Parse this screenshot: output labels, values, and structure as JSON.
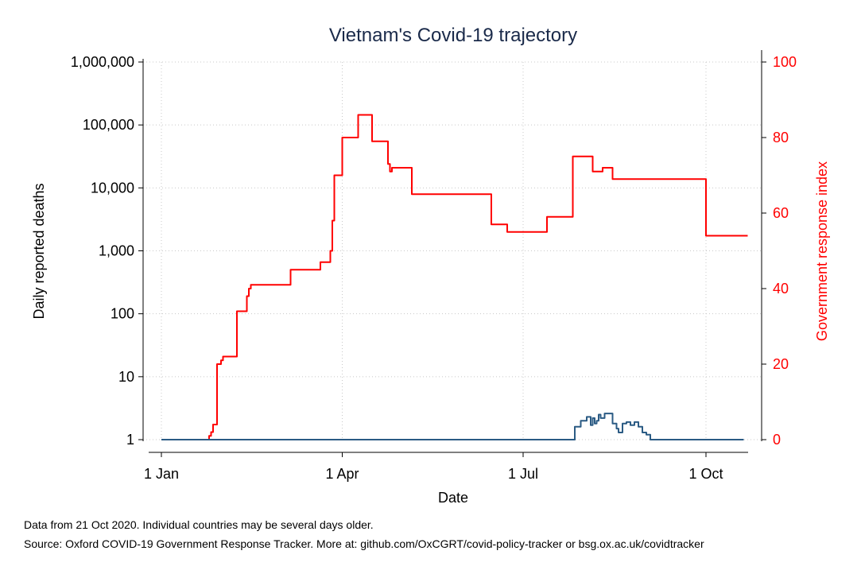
{
  "chart_data": {
    "type": "line",
    "title": "Vietnam's Covid-19 trajectory",
    "xlabel": "Date",
    "ylabel_left": "Daily reported deaths",
    "ylabel_right": "Government response index",
    "y_left_scale": "log",
    "y_left_ticks": [
      "1",
      "10",
      "100",
      "1,000",
      "10,000",
      "100,000",
      "1,000,000"
    ],
    "y_left_range": [
      1,
      1000000
    ],
    "y_right_ticks": [
      "0",
      "20",
      "40",
      "60",
      "80",
      "100"
    ],
    "y_right_range": [
      0,
      100
    ],
    "x_ticks": [
      "1 Jan",
      "1 Apr",
      "1 Jul",
      "1 Oct"
    ],
    "x_range": [
      "2020-01-01",
      "2020-10-21"
    ],
    "grid": true,
    "colors": {
      "deaths": "#2b5b84",
      "response_index": "#ff0000",
      "right_axis": "#ff0000"
    },
    "series": [
      {
        "axis": "right",
        "color": "#ff0000",
        "x": [
          "2020-01-01",
          "2020-01-24",
          "2020-01-25",
          "2020-01-26",
          "2020-01-27",
          "2020-01-28",
          "2020-01-29",
          "2020-01-30",
          "2020-01-31",
          "2020-02-01",
          "2020-02-03",
          "2020-02-04",
          "2020-02-07",
          "2020-02-08",
          "2020-02-12",
          "2020-02-13",
          "2020-02-14",
          "2020-02-15",
          "2020-02-17",
          "2020-03-05",
          "2020-03-06",
          "2020-03-20",
          "2020-03-21",
          "2020-03-23",
          "2020-03-26",
          "2020-03-27",
          "2020-03-28",
          "2020-03-31",
          "2020-04-01",
          "2020-04-08",
          "2020-04-09",
          "2020-04-15",
          "2020-04-16",
          "2020-04-23",
          "2020-04-24",
          "2020-04-25",
          "2020-04-26",
          "2020-05-05",
          "2020-05-06",
          "2020-06-14",
          "2020-06-15",
          "2020-06-22",
          "2020-06-23",
          "2020-07-12",
          "2020-07-13",
          "2020-07-25",
          "2020-07-26",
          "2020-07-28",
          "2020-07-29",
          "2020-08-04",
          "2020-08-05",
          "2020-08-09",
          "2020-08-10",
          "2020-08-14",
          "2020-08-15",
          "2020-09-30",
          "2020-10-01",
          "2020-10-22"
        ],
        "values": [
          0,
          0,
          1,
          2,
          4,
          4,
          20,
          20,
          21,
          22,
          22,
          22,
          22,
          34,
          34,
          38,
          40,
          41,
          41,
          41,
          45,
          45,
          47,
          47,
          50,
          58,
          70,
          70,
          80,
          80,
          86,
          86,
          79,
          79,
          73,
          71,
          72,
          72,
          65,
          65,
          57,
          57,
          55,
          55,
          59,
          59,
          75,
          75,
          75,
          75,
          71,
          71,
          72,
          72,
          69,
          69,
          54,
          54
        ]
      },
      {
        "axis": "left",
        "color": "#2b5b84",
        "x": [
          "2020-01-01",
          "2020-07-25",
          "2020-07-27",
          "2020-07-30",
          "2020-08-02",
          "2020-08-04",
          "2020-08-05",
          "2020-08-06",
          "2020-08-07",
          "2020-08-08",
          "2020-08-09",
          "2020-08-11",
          "2020-08-13",
          "2020-08-15",
          "2020-08-17",
          "2020-08-18",
          "2020-08-20",
          "2020-08-22",
          "2020-08-24",
          "2020-08-26",
          "2020-08-28",
          "2020-08-30",
          "2020-09-01",
          "2020-09-03",
          "2020-09-05",
          "2020-10-20"
        ],
        "values": [
          1,
          1,
          1.6,
          2,
          2.3,
          1.7,
          2.2,
          1.8,
          2.0,
          2.5,
          2.2,
          2.6,
          2.6,
          1.8,
          1.5,
          1.3,
          1.8,
          1.9,
          1.7,
          1.9,
          1.6,
          1.3,
          1.2,
          1,
          1,
          1
        ]
      }
    ]
  },
  "footnote_1": "Data from 21 Oct 2020. Individual countries may be several days older.",
  "footnote_2": "Source: Oxford COVID-19 Government Response Tracker. More at: github.com/OxCGRT/covid-policy-tracker or bsg.ox.ac.uk/covidtracker"
}
